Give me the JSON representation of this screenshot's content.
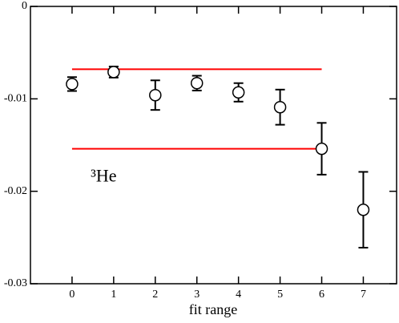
{
  "chart_data": {
    "type": "errorbar",
    "x_label": "fit range",
    "x": [
      0,
      1,
      2,
      3,
      4,
      5,
      6,
      7
    ],
    "series": [
      {
        "color": "#000000",
        "values": [
          -0.0084,
          -0.0071,
          -0.0096,
          -0.0083,
          -0.0093,
          -0.0109,
          -0.0154,
          -0.022
        ],
        "errors": [
          0.00075,
          0.0006,
          0.0016,
          0.0008,
          0.001,
          0.0019,
          0.0028,
          0.0041
        ]
      }
    ],
    "hlines": [
      {
        "y": -0.0068,
        "x": [
          0,
          6
        ],
        "color": "#ff0000"
      },
      {
        "y": -0.0154,
        "x": [
          0,
          6
        ],
        "color": "#ff0000"
      }
    ],
    "annotation": {
      "text": "³He",
      "x": 0.45,
      "y": -0.0185
    },
    "xlim": [
      -1,
      7.8
    ],
    "xticks": [
      0,
      1,
      2,
      3,
      4,
      5,
      6,
      7
    ],
    "ylim": [
      -0.03,
      0
    ],
    "yticks": [
      0,
      -0.01,
      -0.02,
      -0.03
    ]
  }
}
